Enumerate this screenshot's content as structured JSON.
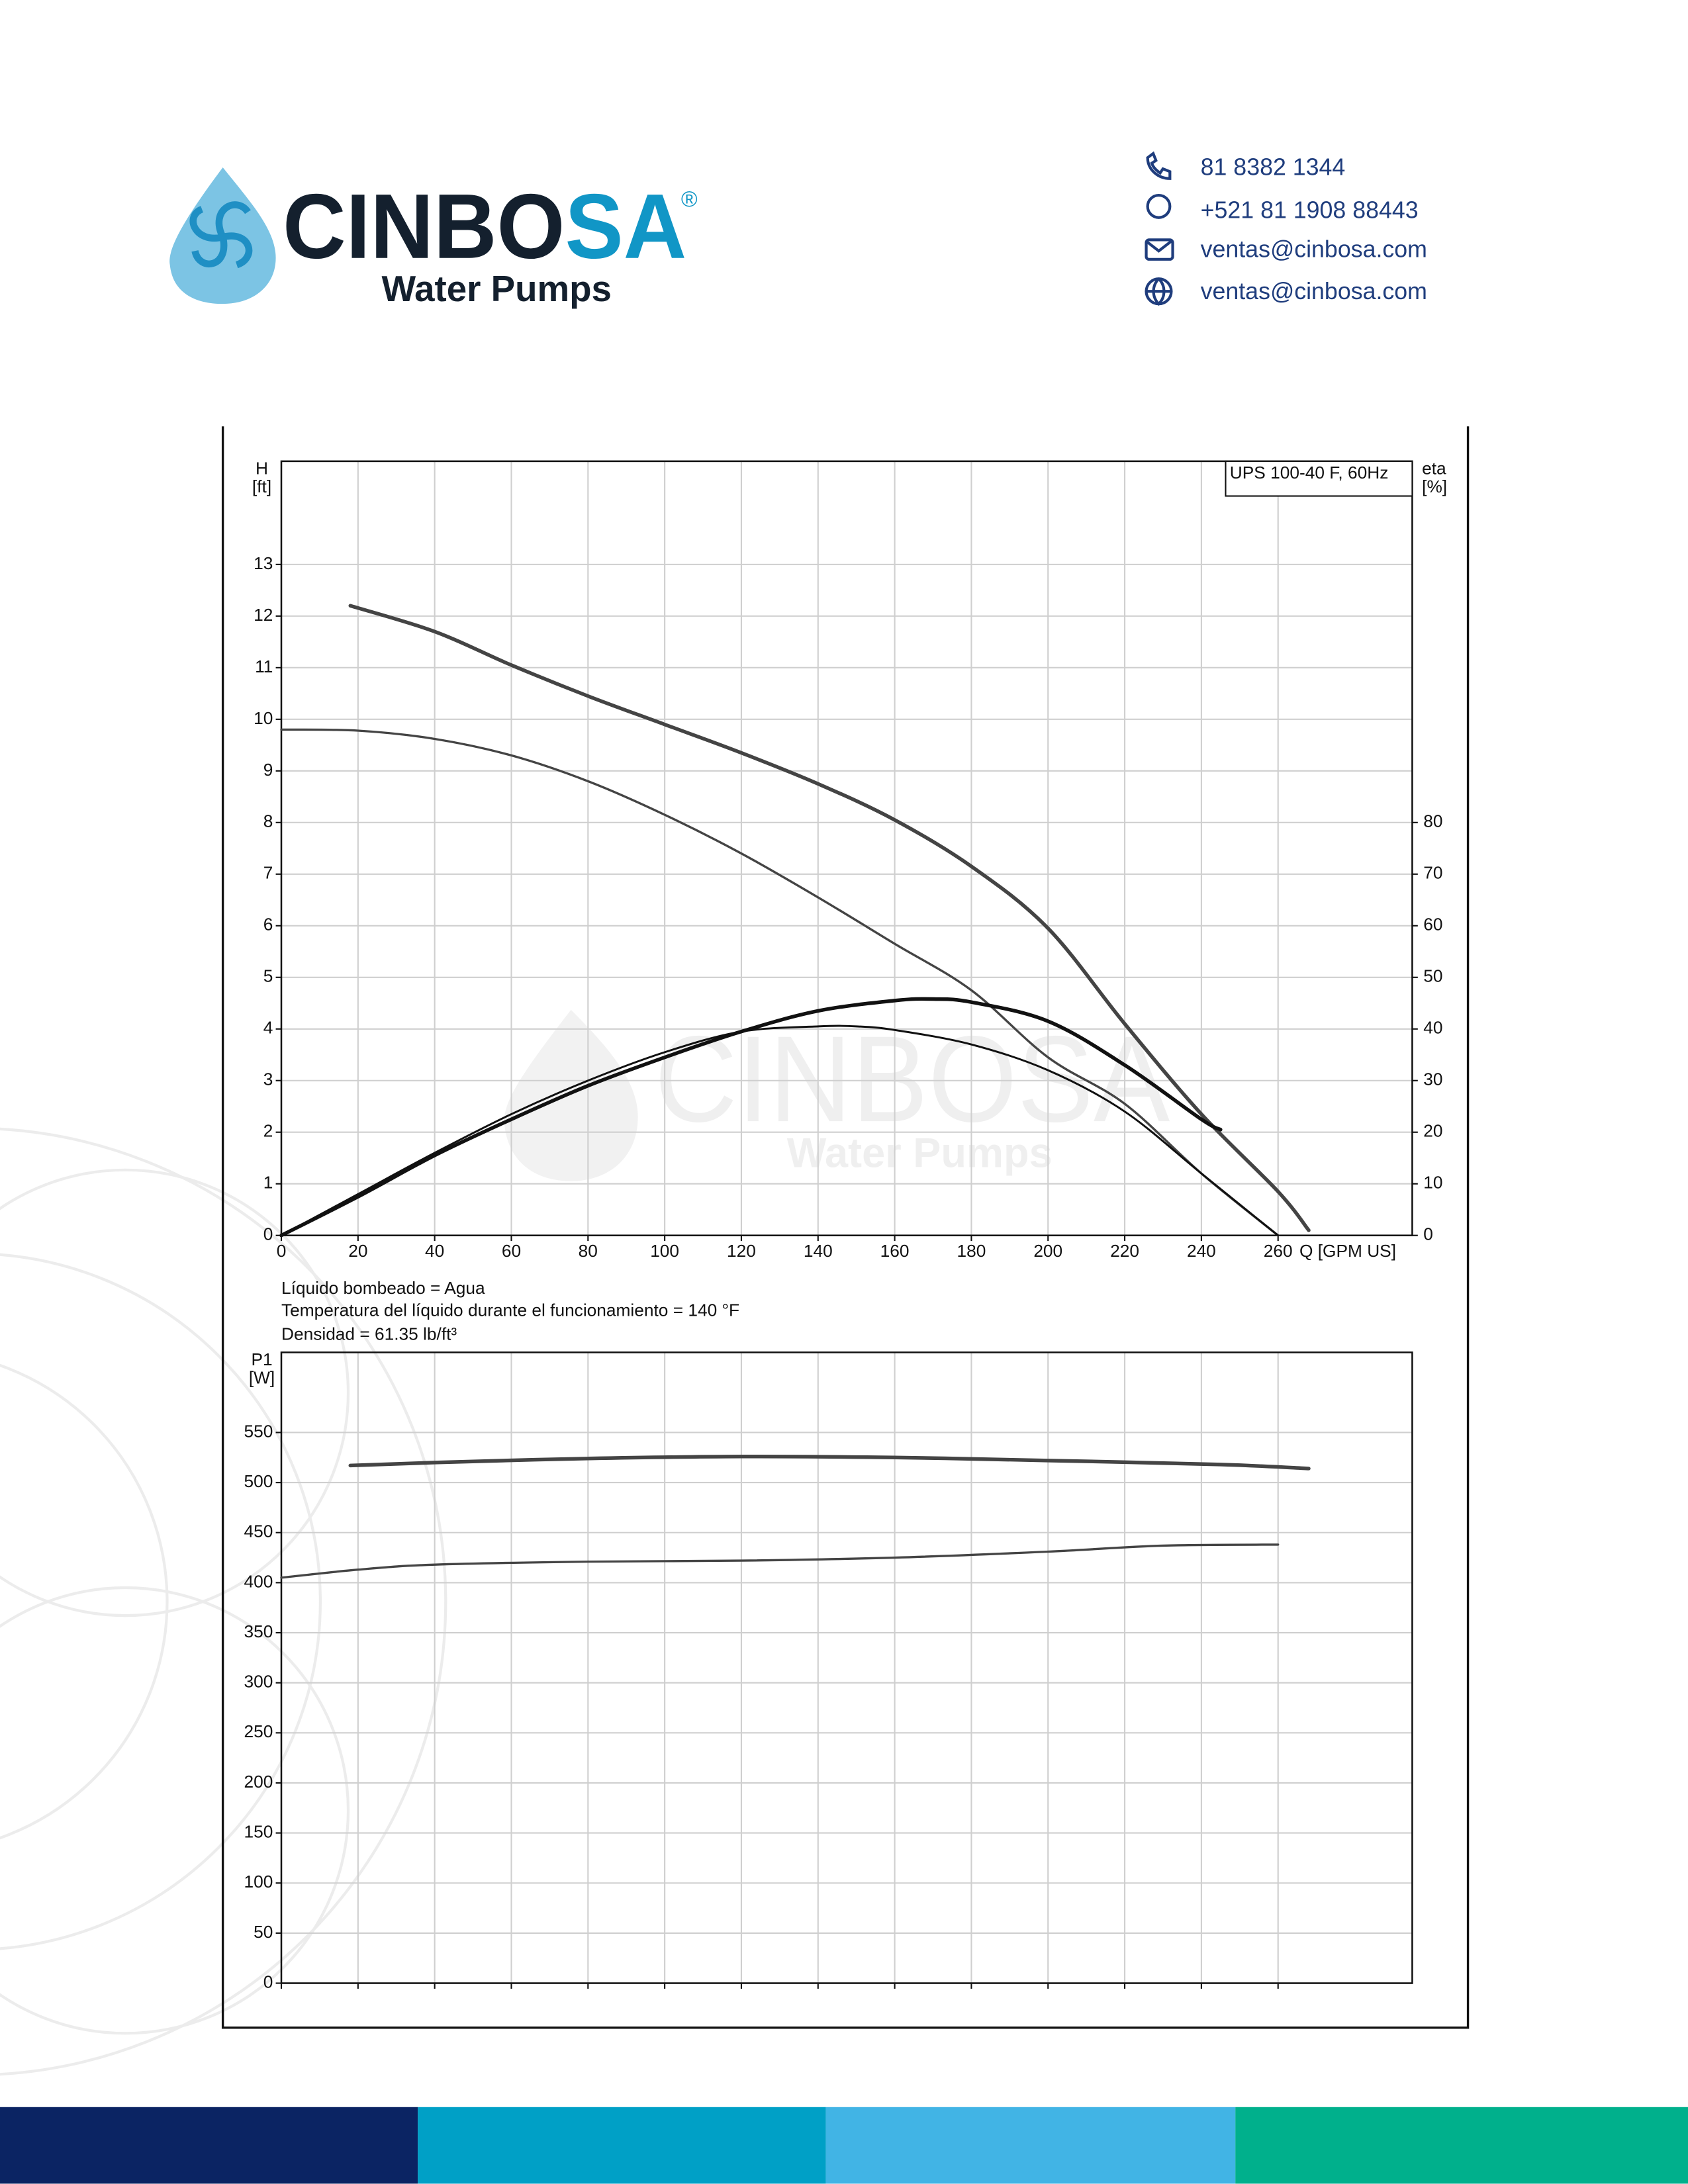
{
  "header": {
    "logo_dark": "CINBO",
    "logo_accent": "SA",
    "registered": "®",
    "tagline": "Water Pumps",
    "contacts": [
      "81 8382 1344",
      "+521 81 1908 88443",
      "ventas@cinbosa.com",
      "ventas@cinbosa.com"
    ]
  },
  "notes": [
    "Líquido bombeado = Agua",
    "Temperatura del líquido durante el funcionamiento = 140 °F",
    "Densidad = 61.35 lb/ft³"
  ],
  "chart_data": [
    {
      "type": "line",
      "legend": "UPS 100-40 F, 60Hz",
      "x_label": "Q [GPM US]",
      "y_label": "H",
      "y_unit": "[ft]",
      "y2_label": "eta",
      "y2_unit": "[%]",
      "xlim": [
        0,
        295
      ],
      "xticks": [
        0,
        20,
        40,
        60,
        80,
        100,
        120,
        140,
        160,
        180,
        200,
        220,
        240,
        260
      ],
      "ylim": [
        0,
        15
      ],
      "yticks": [
        0,
        1,
        2,
        3,
        4,
        5,
        6,
        7,
        8,
        9,
        10,
        11,
        12,
        13
      ],
      "y2lim": [
        0,
        150
      ],
      "y2ticks": [
        0,
        10,
        20,
        30,
        40,
        50,
        60,
        70,
        80
      ],
      "grid": true,
      "series": [
        {
          "color": "#444444",
          "width": 2.6,
          "x": [
            18,
            40,
            60,
            80,
            100,
            120,
            140,
            160,
            180,
            200,
            220,
            240,
            260,
            268
          ],
          "values": [
            12.2,
            11.7,
            11.05,
            10.45,
            9.9,
            9.35,
            8.75,
            8.05,
            7.15,
            5.95,
            4.1,
            2.35,
            0.85,
            0.1
          ]
        },
        {
          "color": "#444444",
          "width": 1.6,
          "x": [
            0,
            20,
            40,
            60,
            80,
            100,
            120,
            140,
            160,
            180,
            200,
            220,
            240,
            260
          ],
          "values": [
            9.8,
            9.78,
            9.62,
            9.3,
            8.8,
            8.15,
            7.4,
            6.55,
            5.65,
            4.75,
            3.45,
            2.55,
            1.2,
            0
          ]
        },
        {
          "color": "#111111",
          "width": 2.6,
          "axis": "y2",
          "x": [
            0,
            20,
            40,
            60,
            80,
            100,
            120,
            140,
            160,
            170,
            180,
            200,
            220,
            240,
            245
          ],
          "values": [
            0,
            7.5,
            15.5,
            22.5,
            29,
            34.5,
            39.5,
            43.5,
            45.5,
            45.8,
            45.2,
            41.5,
            33,
            22.5,
            20.5
          ]
        },
        {
          "color": "#111111",
          "width": 1.4,
          "axis": "y2",
          "x": [
            0,
            20,
            40,
            60,
            80,
            100,
            120,
            140,
            150,
            160,
            180,
            200,
            220,
            240,
            260
          ],
          "values": [
            0,
            8,
            16,
            23.5,
            30,
            35.5,
            39.5,
            40.5,
            40.5,
            39.8,
            37,
            32,
            24,
            12,
            0
          ]
        }
      ]
    },
    {
      "type": "line",
      "y_label": "P1",
      "y_unit": "[W]",
      "xlim": [
        0,
        295
      ],
      "ylim": [
        0,
        630
      ],
      "yticks": [
        0,
        50,
        100,
        150,
        200,
        250,
        300,
        350,
        400,
        450,
        500,
        550
      ],
      "grid": true,
      "series": [
        {
          "color": "#444444",
          "width": 2.6,
          "x": [
            18,
            40,
            80,
            120,
            160,
            200,
            245,
            268
          ],
          "values": [
            517,
            520,
            524,
            526,
            525,
            522,
            518,
            514
          ]
        },
        {
          "color": "#444444",
          "width": 1.6,
          "x": [
            0,
            20,
            40,
            80,
            120,
            160,
            200,
            230,
            260
          ],
          "values": [
            405,
            413,
            418,
            421,
            422,
            425,
            431,
            437,
            438
          ]
        }
      ]
    }
  ]
}
